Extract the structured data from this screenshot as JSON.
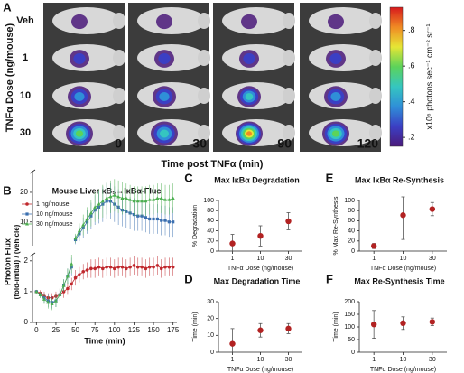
{
  "chart_data": [
    {
      "type": "image_grid",
      "label": "A",
      "row_title": "TNFα Dose (ng/mouse)",
      "rows": [
        "Veh",
        "1",
        "10",
        "30"
      ],
      "columns": [
        "0",
        "30",
        "90",
        "120"
      ],
      "x_title": "Time post TNFα (min)",
      "colorbar": {
        "title": "x10⁶ photons sec⁻¹ cm⁻² sr⁻¹",
        "lim": [
          0.15,
          0.93
        ],
        "colormap": [
          "#4b1a7a",
          "#3b3fc4",
          "#2f8fd8",
          "#35c6c0",
          "#5cd35a",
          "#e6e635",
          "#f08a24",
          "#d7191c"
        ],
        "ticks": [
          {
            "value": 0.2,
            "label": ".2"
          },
          {
            "value": 0.4,
            "label": ".4"
          },
          {
            "value": 0.6,
            "label": ".6"
          },
          {
            "value": 0.8,
            "label": ".8"
          }
        ]
      }
    },
    {
      "type": "line",
      "label": "B",
      "title": "Mouse Liver κB₅→IκBα-Fluc",
      "ylabel": [
        "Photon Flux",
        "(fold-initial) / (vehicle)"
      ],
      "xlabel": "Time (min)",
      "x": [
        0,
        5,
        10,
        15,
        20,
        25,
        30,
        35,
        40,
        45,
        50,
        55,
        60,
        65,
        70,
        75,
        80,
        85,
        90,
        95,
        100,
        105,
        110,
        115,
        120,
        125,
        130,
        135,
        140,
        145,
        150,
        155,
        160,
        165,
        170,
        175
      ],
      "xlim": [
        -5,
        180
      ],
      "xticks": [
        0,
        25,
        50,
        75,
        100,
        125,
        150,
        175
      ],
      "segments": [
        {
          "ylim": [
            0,
            2.2
          ],
          "yticks": [
            0,
            1,
            2
          ]
        },
        {
          "ylim": [
            2,
            27
          ],
          "yticks": [
            10,
            20
          ]
        }
      ],
      "legend": "upper left",
      "series": [
        {
          "name": "1 ng/mouse",
          "color": "#c0282d",
          "marker": "circle",
          "values": [
            1.0,
            0.95,
            0.85,
            0.8,
            0.8,
            0.85,
            0.9,
            1.0,
            1.1,
            1.25,
            1.45,
            1.55,
            1.65,
            1.7,
            1.75,
            1.75,
            1.8,
            1.75,
            1.8,
            1.8,
            1.75,
            1.8,
            1.8,
            1.75,
            1.8,
            1.85,
            1.8,
            1.8,
            1.75,
            1.8,
            1.8,
            1.85,
            1.75,
            1.8,
            1.8,
            1.8
          ],
          "errors": [
            0.05,
            0.1,
            0.15,
            0.15,
            0.15,
            0.15,
            0.2,
            0.2,
            0.2,
            0.2,
            0.25,
            0.25,
            0.25,
            0.25,
            0.3,
            0.3,
            0.3,
            0.3,
            0.3,
            0.3,
            0.3,
            0.3,
            0.3,
            0.3,
            0.3,
            0.3,
            0.3,
            0.3,
            0.3,
            0.3,
            0.3,
            0.3,
            0.3,
            0.3,
            0.3,
            0.3
          ]
        },
        {
          "name": "10 ng/mouse",
          "color": "#3b6fb0",
          "marker": "square",
          "values": [
            1.0,
            0.9,
            0.8,
            0.7,
            0.65,
            0.7,
            0.9,
            1.2,
            1.5,
            1.8,
            4,
            6,
            8,
            10,
            12,
            14,
            15,
            16,
            17,
            17,
            16,
            15,
            14,
            13.5,
            13,
            12.5,
            12,
            12,
            11.5,
            11,
            11,
            11,
            10.5,
            10.5,
            10,
            10
          ],
          "errors": [
            0.05,
            0.1,
            0.15,
            0.2,
            0.2,
            0.2,
            0.2,
            0.2,
            0.25,
            0.3,
            1.5,
            2.5,
            3.5,
            4,
            4.5,
            5,
            5.5,
            6,
            6,
            6,
            6,
            6,
            5.5,
            5.5,
            5.5,
            5.5,
            5,
            5,
            5,
            5,
            5,
            5,
            5,
            5,
            5,
            5
          ]
        },
        {
          "name": "30 ng/mouse",
          "color": "#4caf50",
          "marker": "triangle",
          "values": [
            1.0,
            0.9,
            0.75,
            0.65,
            0.6,
            0.7,
            0.9,
            1.2,
            1.5,
            1.9,
            4.5,
            7,
            9,
            11,
            13,
            15,
            16,
            17,
            18,
            18.5,
            19,
            18.5,
            18,
            18,
            17.5,
            17,
            17,
            17,
            17,
            17.5,
            17.5,
            18,
            18,
            17.5,
            17.5,
            18
          ],
          "errors": [
            0.05,
            0.1,
            0.15,
            0.2,
            0.2,
            0.2,
            0.2,
            0.2,
            0.25,
            0.3,
            1.5,
            2.5,
            3.5,
            4,
            4.5,
            5,
            5,
            5.5,
            5.5,
            5.5,
            5.5,
            5.5,
            5.5,
            5,
            5,
            5,
            5,
            5,
            5,
            5,
            5,
            5,
            5,
            5,
            5,
            5
          ]
        }
      ]
    },
    {
      "type": "dot",
      "label": "C",
      "title": "Max IκBα Degradation",
      "ylabel": "% Degradation",
      "xlabel": "TNFα Dose (ng/mouse)",
      "categories": [
        "1",
        "10",
        "30"
      ],
      "values": [
        15,
        30,
        59
      ],
      "errors": [
        18,
        20,
        17
      ],
      "color": "#b22222",
      "ylim": [
        0,
        100
      ],
      "yticks": [
        0,
        20,
        40,
        60,
        80,
        100
      ]
    },
    {
      "type": "dot",
      "label": "D",
      "title": "Max Degradation Time",
      "ylabel": "Time (min)",
      "xlabel": "TNFα Dose (ng/mouse)",
      "categories": [
        "1",
        "10",
        "30"
      ],
      "values": [
        5,
        13,
        14
      ],
      "errors": [
        9,
        4,
        3
      ],
      "color": "#b22222",
      "ylim": [
        0,
        30
      ],
      "yticks": [
        0,
        10,
        20,
        30
      ]
    },
    {
      "type": "dot",
      "label": "E",
      "title": "Max IκBα Re-Synthesis",
      "ylabel": "% Max Re-Synthesis",
      "xlabel": "TNFα Dose (ng/mouse)",
      "categories": [
        "1",
        "10",
        "30"
      ],
      "values": [
        10,
        71,
        83
      ],
      "errors": [
        5,
        48,
        13
      ],
      "color": "#b22222",
      "ylim": [
        0,
        100
      ],
      "yticks": [
        0,
        20,
        40,
        60,
        80,
        100
      ]
    },
    {
      "type": "dot",
      "label": "F",
      "title": "Max Re-Synthesis Time",
      "ylabel": "Time (min)",
      "xlabel": "TNFα Dose (ng/mouse)",
      "categories": [
        "1",
        "10",
        "30"
      ],
      "values": [
        110,
        115,
        120
      ],
      "errors": [
        55,
        25,
        15
      ],
      "color": "#b22222",
      "ylim": [
        0,
        200
      ],
      "yticks": [
        0,
        50,
        100,
        150,
        200
      ]
    }
  ]
}
